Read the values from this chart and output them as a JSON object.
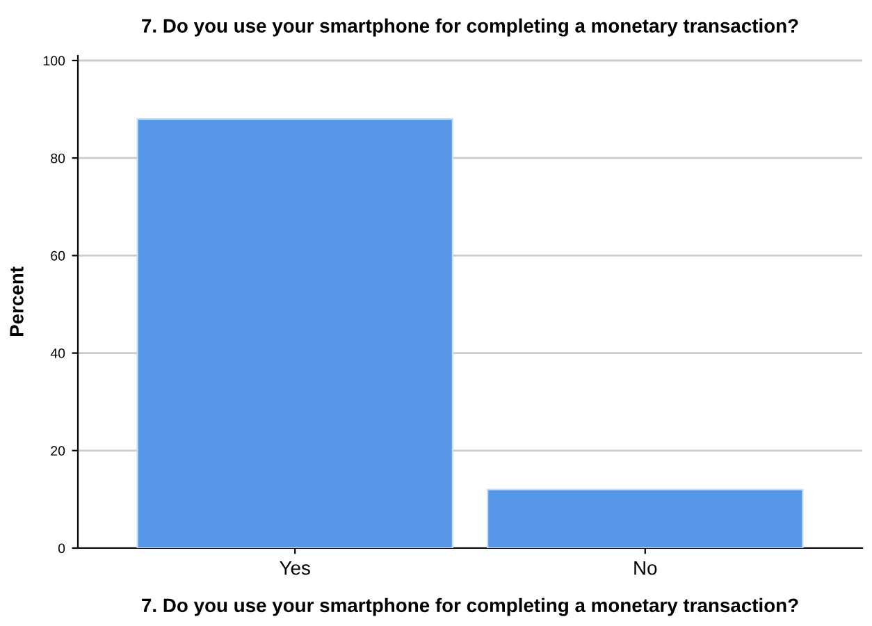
{
  "chart_data": {
    "type": "bar",
    "title": "7. Do you use your smartphone for completing a monetary transaction?",
    "xlabel": "7. Do you use your smartphone for completing a monetary transaction?",
    "ylabel": "Percent",
    "categories": [
      "Yes",
      "No"
    ],
    "values": [
      88,
      12
    ],
    "color": "#5596e6",
    "ylim": [
      0,
      101
    ],
    "yticks": [
      0,
      20,
      40,
      60,
      80,
      100
    ],
    "grid": "y"
  }
}
